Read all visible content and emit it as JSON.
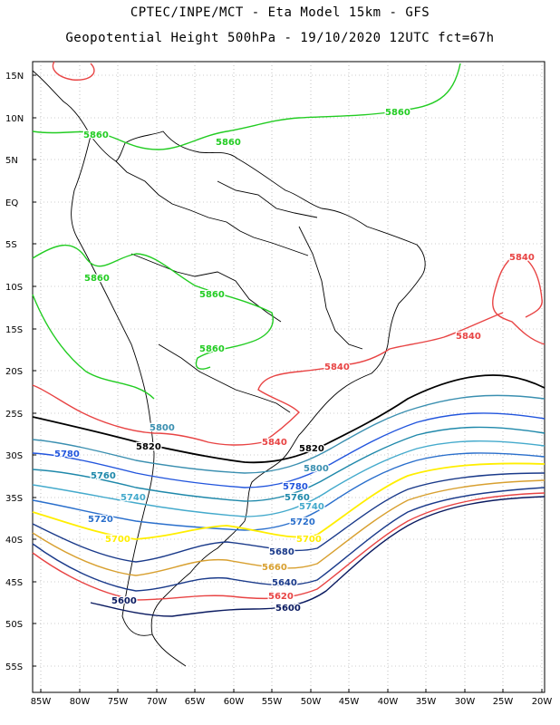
{
  "header": {
    "line1": "CPTEC/INPE/MCT -  Eta Model 15km - GFS",
    "line2": "Geopotential Height 500hPa - 19/10/2020 12UTC fct=67h"
  },
  "map": {
    "lat_labels": [
      "15N",
      "10N",
      "5N",
      "EQ",
      "5S",
      "10S",
      "15S",
      "20S",
      "25S",
      "30S",
      "35S",
      "40S",
      "45S",
      "50S",
      "55S"
    ],
    "lon_labels": [
      "85W",
      "80W",
      "75W",
      "70W",
      "65W",
      "60W",
      "55W",
      "50W",
      "45W",
      "40W",
      "35W",
      "30W",
      "25W",
      "20W"
    ],
    "colors": {
      "c5860": "#22cc22",
      "c5840": "#e84444",
      "c5820": "#000000",
      "c5800": "#3a8fb0",
      "c5780": "#2255dd",
      "c5760": "#1e88aa",
      "c5740": "#44aacc",
      "c5720": "#2a6fcc",
      "c5700": "#ffee00",
      "c5680": "#1a3a8a",
      "c5660": "#d8a030",
      "c5640": "#1a3a8a",
      "c5620": "#e84444",
      "c5600": "#0a1a60"
    },
    "contour_labels": [
      {
        "text": "5860",
        "color_key": "c5860"
      },
      {
        "text": "5860",
        "color_key": "c5860"
      },
      {
        "text": "5860",
        "color_key": "c5860"
      },
      {
        "text": "5860",
        "color_key": "c5860"
      },
      {
        "text": "5860",
        "color_key": "c5860"
      },
      {
        "text": "5860",
        "color_key": "c5860"
      },
      {
        "text": "5840",
        "color_key": "c5840"
      },
      {
        "text": "5840",
        "color_key": "c5840"
      },
      {
        "text": "5840",
        "color_key": "c5840"
      },
      {
        "text": "5840",
        "color_key": "c5840"
      },
      {
        "text": "5820",
        "color_key": "c5820"
      },
      {
        "text": "5820",
        "color_key": "c5820"
      },
      {
        "text": "5800",
        "color_key": "c5800"
      },
      {
        "text": "5800",
        "color_key": "c5800"
      },
      {
        "text": "5780",
        "color_key": "c5780"
      },
      {
        "text": "5780",
        "color_key": "c5780"
      },
      {
        "text": "5760",
        "color_key": "c5760"
      },
      {
        "text": "5760",
        "color_key": "c5760"
      },
      {
        "text": "5740",
        "color_key": "c5740"
      },
      {
        "text": "5740",
        "color_key": "c5740"
      },
      {
        "text": "5720",
        "color_key": "c5720"
      },
      {
        "text": "5720",
        "color_key": "c5720"
      },
      {
        "text": "5700",
        "color_key": "c5700"
      },
      {
        "text": "5700",
        "color_key": "c5700"
      },
      {
        "text": "5680",
        "color_key": "c5680"
      },
      {
        "text": "5660",
        "color_key": "c5660"
      },
      {
        "text": "5640",
        "color_key": "c5640"
      },
      {
        "text": "5620",
        "color_key": "c5620"
      },
      {
        "text": "5600",
        "color_key": "c5600"
      },
      {
        "text": "5600",
        "color_key": "c5600"
      }
    ]
  }
}
